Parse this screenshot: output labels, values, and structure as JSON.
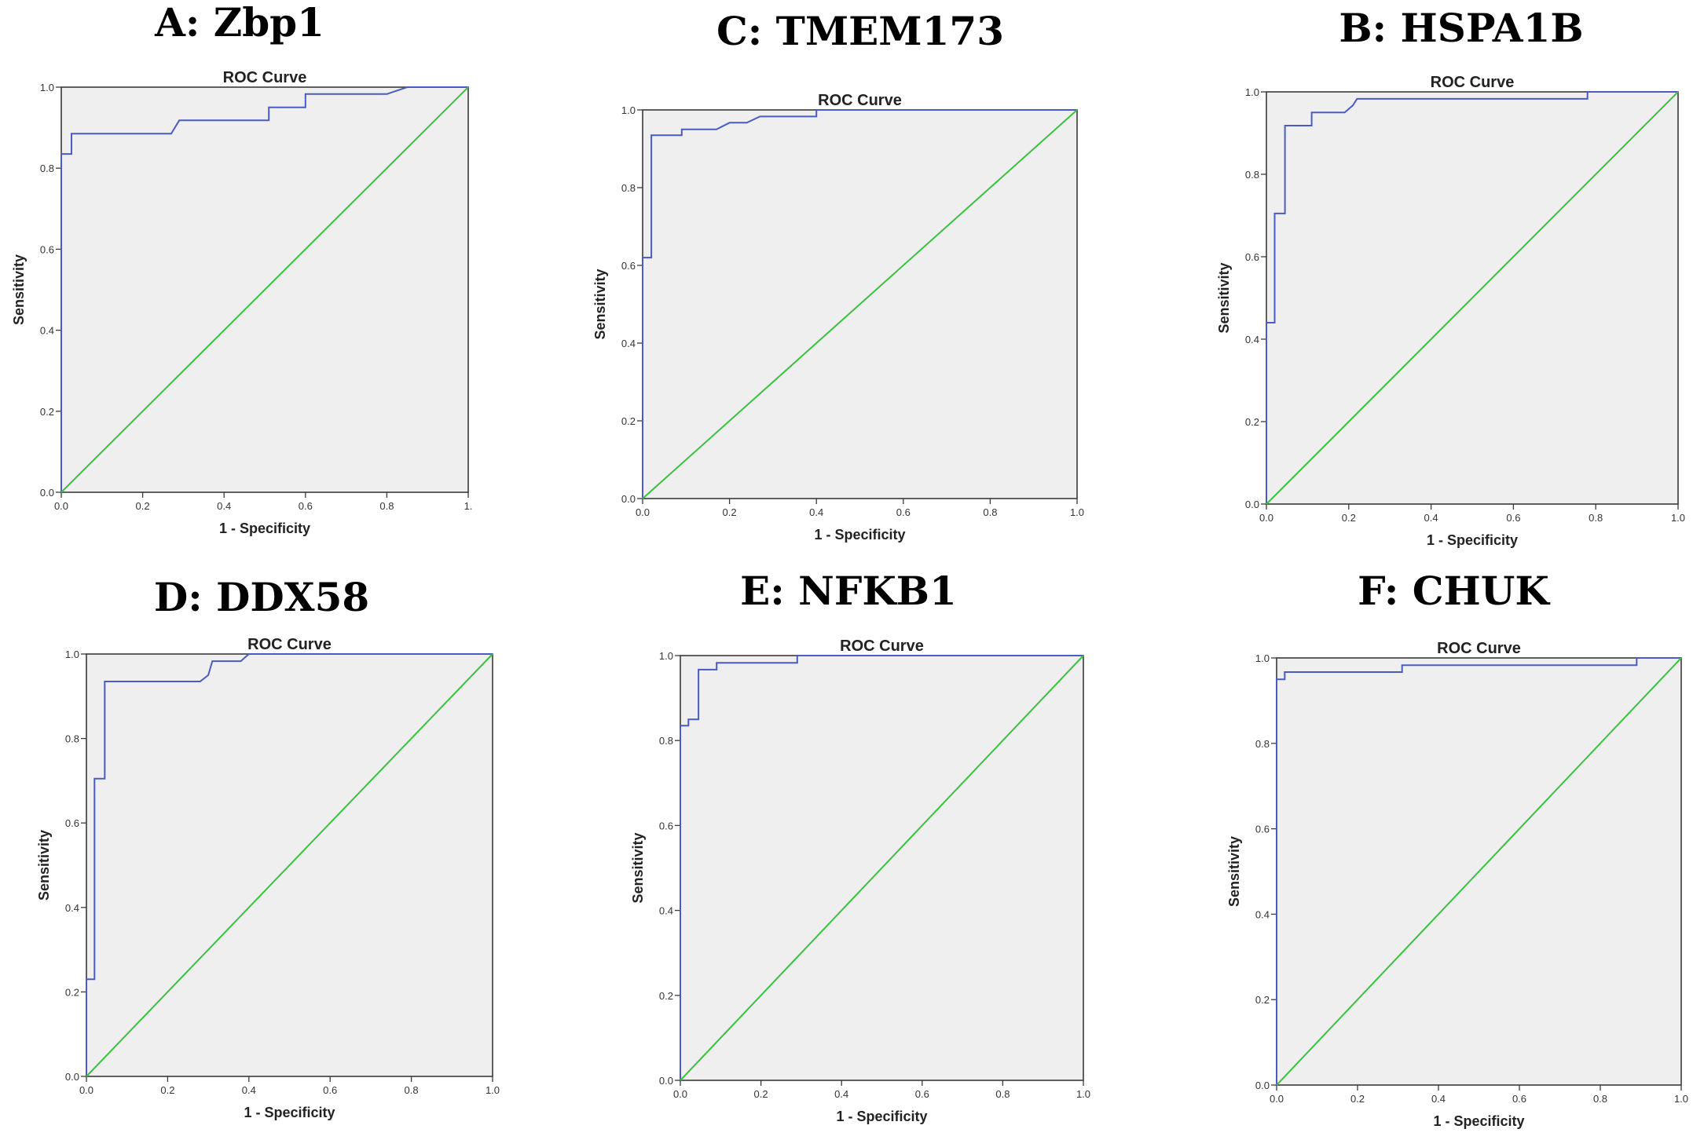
{
  "colors": {
    "roc": "#4b5bc4",
    "reference": "#39c23f",
    "plot_bg": "#efefef",
    "frame": "#3a3a3a"
  },
  "chart_data": [
    {
      "id": "A",
      "panel_title": "A: Zbp1",
      "type": "line",
      "title": "ROC Curve",
      "xlabel": "1 - Specificity",
      "ylabel": "Sensitivity",
      "xlim": [
        0,
        1
      ],
      "ylim": [
        0,
        1
      ],
      "x_ticks": [
        "0.0",
        "0.2",
        "0.4",
        "0.6",
        "0.8",
        "1."
      ],
      "y_ticks": [
        "0.0",
        "0.2",
        "0.4",
        "0.6",
        "0.8",
        "1.0"
      ],
      "series": [
        {
          "name": "ROC",
          "x": [
            0,
            0,
            0.025,
            0.025,
            0.27,
            0.29,
            0.51,
            0.51,
            0.6,
            0.6,
            0.8,
            0.85,
            1
          ],
          "y": [
            0,
            0.835,
            0.835,
            0.885,
            0.885,
            0.918,
            0.918,
            0.95,
            0.95,
            0.983,
            0.983,
            1,
            1
          ]
        },
        {
          "name": "Reference",
          "x": [
            0,
            1
          ],
          "y": [
            0,
            1
          ]
        }
      ]
    },
    {
      "id": "C",
      "panel_title": "C: TMEM173",
      "type": "line",
      "title": "ROC Curve",
      "xlabel": "1 - Specificity",
      "ylabel": "Sensitivity",
      "xlim": [
        0,
        1
      ],
      "ylim": [
        0,
        1
      ],
      "x_ticks": [
        "0.0",
        "0.2",
        "0.4",
        "0.6",
        "0.8",
        "1.0"
      ],
      "y_ticks": [
        "0.0",
        "0.2",
        "0.4",
        "0.6",
        "0.8",
        "1.0"
      ],
      "series": [
        {
          "name": "ROC",
          "x": [
            0,
            0,
            0.02,
            0.02,
            0.09,
            0.09,
            0.17,
            0.2,
            0.24,
            0.27,
            0.4,
            0.4,
            1
          ],
          "y": [
            0,
            0.62,
            0.62,
            0.935,
            0.935,
            0.95,
            0.95,
            0.967,
            0.967,
            0.983,
            0.983,
            1,
            1
          ]
        },
        {
          "name": "Reference",
          "x": [
            0,
            1
          ],
          "y": [
            0,
            1
          ]
        }
      ]
    },
    {
      "id": "B",
      "panel_title": "B: HSPA1B",
      "type": "line",
      "title": "ROC Curve",
      "xlabel": "1 - Specificity",
      "ylabel": "Sensitivity",
      "xlim": [
        0,
        1
      ],
      "ylim": [
        0,
        1
      ],
      "x_ticks": [
        "0.0",
        "0.2",
        "0.4",
        "0.6",
        "0.8",
        "1.0"
      ],
      "y_ticks": [
        "0.0",
        "0.2",
        "0.4",
        "0.6",
        "0.8",
        "1.0"
      ],
      "series": [
        {
          "name": "ROC",
          "x": [
            0,
            0,
            0.02,
            0.02,
            0.045,
            0.045,
            0.11,
            0.11,
            0.19,
            0.21,
            0.22,
            0.78,
            0.78,
            1
          ],
          "y": [
            0,
            0.44,
            0.44,
            0.705,
            0.705,
            0.918,
            0.918,
            0.95,
            0.95,
            0.967,
            0.983,
            0.983,
            1,
            1
          ]
        },
        {
          "name": "Reference",
          "x": [
            0,
            1
          ],
          "y": [
            0,
            1
          ]
        }
      ]
    },
    {
      "id": "D",
      "panel_title": "D: DDX58",
      "type": "line",
      "title": "ROC Curve",
      "xlabel": "1 - Specificity",
      "ylabel": "Sensitivity",
      "xlim": [
        0,
        1
      ],
      "ylim": [
        0,
        1
      ],
      "x_ticks": [
        "0.0",
        "0.2",
        "0.4",
        "0.6",
        "0.8",
        "1.0"
      ],
      "y_ticks": [
        "0.0",
        "0.2",
        "0.4",
        "0.6",
        "0.8",
        "1.0"
      ],
      "series": [
        {
          "name": "ROC",
          "x": [
            0,
            0,
            0.02,
            0.02,
            0.045,
            0.045,
            0.28,
            0.3,
            0.31,
            0.38,
            0.4,
            1
          ],
          "y": [
            0,
            0.23,
            0.23,
            0.705,
            0.705,
            0.935,
            0.935,
            0.95,
            0.983,
            0.983,
            1,
            1
          ]
        },
        {
          "name": "Reference",
          "x": [
            0,
            1
          ],
          "y": [
            0,
            1
          ]
        }
      ]
    },
    {
      "id": "E",
      "panel_title": "E: NFKB1",
      "type": "line",
      "title": "ROC Curve",
      "xlabel": "1 - Specificity",
      "ylabel": "Sensitivity",
      "xlim": [
        0,
        1
      ],
      "ylim": [
        0,
        1
      ],
      "x_ticks": [
        "0.0",
        "0.2",
        "0.4",
        "0.6",
        "0.8",
        "1.0"
      ],
      "y_ticks": [
        "0.0",
        "0.2",
        "0.4",
        "0.6",
        "0.8",
        "1.0"
      ],
      "series": [
        {
          "name": "ROC",
          "x": [
            0,
            0,
            0.02,
            0.02,
            0.045,
            0.045,
            0.09,
            0.09,
            0.29,
            0.29,
            1
          ],
          "y": [
            0,
            0.835,
            0.835,
            0.85,
            0.85,
            0.967,
            0.967,
            0.983,
            0.983,
            1,
            1
          ]
        },
        {
          "name": "Reference",
          "x": [
            0,
            1
          ],
          "y": [
            0,
            1
          ]
        }
      ]
    },
    {
      "id": "F",
      "panel_title": "F: CHUK",
      "type": "line",
      "title": "ROC Curve",
      "xlabel": "1 - Specificity",
      "ylabel": "Sensitivity",
      "xlim": [
        0,
        1
      ],
      "ylim": [
        0,
        1
      ],
      "x_ticks": [
        "0.0",
        "0.2",
        "0.4",
        "0.6",
        "0.8",
        "1.0"
      ],
      "y_ticks": [
        "0.0",
        "0.2",
        "0.4",
        "0.6",
        "0.8",
        "1.0"
      ],
      "series": [
        {
          "name": "ROC",
          "x": [
            0,
            0,
            0.02,
            0.02,
            0.31,
            0.31,
            0.89,
            0.89,
            1
          ],
          "y": [
            0,
            0.95,
            0.95,
            0.967,
            0.967,
            0.983,
            0.983,
            1,
            1
          ]
        },
        {
          "name": "Reference",
          "x": [
            0,
            1
          ],
          "y": [
            0,
            1
          ]
        }
      ]
    }
  ]
}
